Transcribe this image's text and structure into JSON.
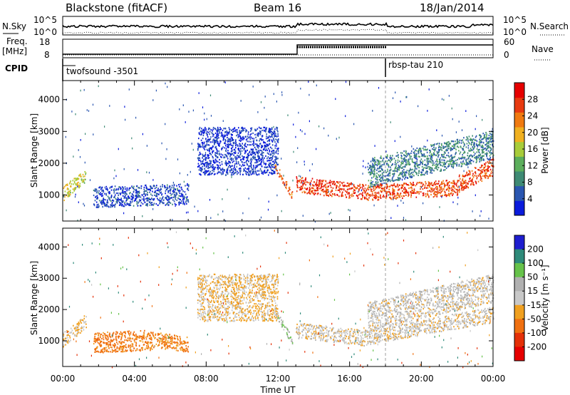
{
  "header": {
    "title": "Blackstone (fitACF)",
    "beam": "Beam 16",
    "date": "18/Jan/2014"
  },
  "sky_panel": {
    "left_label": "N.Sky",
    "right_label": "N.Search",
    "left_ticks": [
      "10^5",
      "10^0"
    ],
    "right_ticks": [
      "10^5",
      "10^0"
    ]
  },
  "freq_panel": {
    "left_label": "Freq.",
    "left_unit": "[MHz]",
    "right_label": "Nave",
    "left_ticks": [
      "18",
      "8"
    ],
    "right_ticks": [
      "60",
      "0"
    ]
  },
  "cpid_panel": {
    "label": "CPID",
    "programs": [
      {
        "name": "twofsound -3501",
        "start_hour": 0
      },
      {
        "name": "rbsp-tau 210",
        "start_hour": 18
      }
    ]
  },
  "colors": {
    "power": [
      "#0a1bdc",
      "#2a56b0",
      "#3e8a74",
      "#5cae5c",
      "#a8cc3a",
      "#f0b020",
      "#f07a10",
      "#e83a10",
      "#e60000"
    ],
    "velocity": [
      "#1e1ecf",
      "#2e8a7a",
      "#66c24a",
      "#b0b0b0",
      "#c8c8c8",
      "#f0a020",
      "#f07010",
      "#e43008",
      "#e60000"
    ]
  },
  "chart_data": [
    {
      "type": "heatmap",
      "name": "power",
      "x_range_hours": [
        0,
        24
      ],
      "y_range_km": [
        180,
        4600
      ],
      "ylabel": "Slant Range [km]",
      "y_ticks": [
        1000,
        2000,
        3000,
        4000
      ],
      "colorbar_label": "Power [dB]",
      "colorbar_ticks": [
        4,
        8,
        12,
        16,
        20,
        24,
        28
      ],
      "colorbar_range": [
        0,
        32
      ],
      "regions": [
        {
          "start_hour": 0.0,
          "end_hour": 1.3,
          "center_km_start": 1050,
          "center_km_end": 1650,
          "thickness_km": 450,
          "value_db": 17
        },
        {
          "start_hour": 1.7,
          "end_hour": 7.0,
          "center_km_start": 950,
          "center_km_end": 1050,
          "thickness_km": 650,
          "value_db": 4
        },
        {
          "start_hour": 7.5,
          "end_hour": 12.0,
          "center_km_start": 2400,
          "center_km_end": 2400,
          "thickness_km": 1500,
          "value_db": 3
        },
        {
          "start_hour": 11.8,
          "end_hour": 12.8,
          "center_km_start": 1950,
          "center_km_end": 1000,
          "thickness_km": 250,
          "value_db": 24
        },
        {
          "start_hour": 13.0,
          "end_hour": 17.0,
          "center_km_start": 1350,
          "center_km_end": 1100,
          "thickness_km": 500,
          "value_db": 27
        },
        {
          "start_hour": 17.0,
          "end_hour": 22.0,
          "center_km_start": 1100,
          "center_km_end": 1250,
          "thickness_km": 500,
          "value_db": 26
        },
        {
          "start_hour": 22.0,
          "end_hour": 24.0,
          "center_km_start": 1350,
          "center_km_end": 1900,
          "thickness_km": 550,
          "value_db": 26
        },
        {
          "start_hour": 17.0,
          "end_hour": 24.0,
          "center_km_start": 1700,
          "center_km_end": 2600,
          "thickness_km": 900,
          "value_db": 8
        }
      ]
    },
    {
      "type": "heatmap",
      "name": "velocity",
      "x_range_hours": [
        0,
        24
      ],
      "y_range_km": [
        180,
        4600
      ],
      "ylabel": "Slant Range [km]",
      "xlabel": "Time UT",
      "x_ticks": [
        "00:00",
        "04:00",
        "08:00",
        "12:00",
        "16:00",
        "20:00",
        "00:00"
      ],
      "y_ticks": [
        1000,
        2000,
        3000,
        4000
      ],
      "colorbar_label": "Velocity [m s⁻¹]",
      "colorbar_ticks": [
        200,
        100,
        50,
        15,
        -15,
        -50,
        -100,
        -200
      ],
      "regions": [
        {
          "start_hour": 0.0,
          "end_hour": 1.3,
          "center_km_start": 1050,
          "center_km_end": 1650,
          "thickness_km": 450,
          "value_ms": -15
        },
        {
          "start_hour": 1.7,
          "end_hour": 5.0,
          "center_km_start": 950,
          "center_km_end": 1050,
          "thickness_km": 650,
          "value_ms": -70
        },
        {
          "start_hour": 5.0,
          "end_hour": 7.0,
          "center_km_start": 1050,
          "center_km_end": 900,
          "thickness_km": 500,
          "value_ms": -60
        },
        {
          "start_hour": 7.5,
          "end_hour": 12.0,
          "center_km_start": 2400,
          "center_km_end": 2400,
          "thickness_km": 1500,
          "value_ms": -20
        },
        {
          "start_hour": 11.8,
          "end_hour": 12.8,
          "center_km_start": 1950,
          "center_km_end": 1000,
          "thickness_km": 250,
          "value_ms": 40
        },
        {
          "start_hour": 13.0,
          "end_hour": 17.0,
          "center_km_start": 1350,
          "center_km_end": 1100,
          "thickness_km": 500,
          "value_ms": 0
        },
        {
          "start_hour": 17.0,
          "end_hour": 24.0,
          "center_km_start": 1150,
          "center_km_end": 1850,
          "thickness_km": 500,
          "value_ms": 0
        },
        {
          "start_hour": 17.0,
          "end_hour": 24.0,
          "center_km_start": 1800,
          "center_km_end": 2700,
          "thickness_km": 900,
          "value_ms": 5
        }
      ]
    }
  ]
}
